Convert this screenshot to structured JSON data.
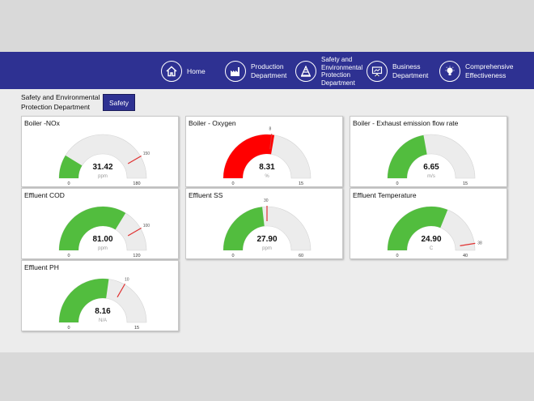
{
  "nav": {
    "items": [
      {
        "label": "Home",
        "icon": "home-icon"
      },
      {
        "label": "Production\nDepartment",
        "icon": "factory-icon"
      },
      {
        "label": "Safety and\nEnvironmental\nProtection\nDepartment",
        "icon": "safety-cone-icon"
      },
      {
        "label": "Business\nDepartment",
        "icon": "presentation-icon"
      },
      {
        "label": "Comprehensive\nEffectiveness",
        "icon": "lightbulb-icon"
      }
    ]
  },
  "header": {
    "department_label": "Safety and Environmental\nProtection Department",
    "safety_button": "Safety"
  },
  "colors": {
    "nav_bg": "#2e3192",
    "ok_fill": "#52bd3e",
    "alarm_fill": "#ff0000",
    "track": "#ececec",
    "threshold": "#e03030"
  },
  "gauges": [
    {
      "title": "Boiler -NOx",
      "value": 31.42,
      "value_text": "31.42",
      "unit": "ppm",
      "min": 0,
      "max": 180,
      "min_label": "0",
      "max_label": "180",
      "threshold": 150,
      "threshold_label": "150",
      "status": "ok"
    },
    {
      "title": "Boiler - Oxygen",
      "value": 8.31,
      "value_text": "8.31",
      "unit": "%",
      "min": 0,
      "max": 15,
      "min_label": "0",
      "max_label": "15",
      "threshold": 8,
      "threshold_label": "8",
      "status": "alarm"
    },
    {
      "title": "Boiler - Exhaust emission flow rate",
      "value": 6.65,
      "value_text": "6.65",
      "unit": "m/s",
      "min": 0,
      "max": 15,
      "min_label": "0",
      "max_label": "15",
      "threshold": null,
      "threshold_label": "",
      "status": "ok"
    },
    {
      "title": "Effluent COD",
      "value": 81.0,
      "value_text": "81.00",
      "unit": "ppm",
      "min": 0,
      "max": 120,
      "min_label": "0",
      "max_label": "120",
      "threshold": 100,
      "threshold_label": "100",
      "status": "ok"
    },
    {
      "title": "Effluent SS",
      "value": 27.9,
      "value_text": "27.90",
      "unit": "ppm",
      "min": 0,
      "max": 60,
      "min_label": "0",
      "max_label": "60",
      "threshold": 30,
      "threshold_label": "30",
      "status": "ok"
    },
    {
      "title": "Effluent Temperature",
      "value": 24.9,
      "value_text": "24.90",
      "unit": "C",
      "min": 0,
      "max": 40,
      "min_label": "0",
      "max_label": "40",
      "threshold": 38,
      "threshold_label": "38",
      "status": "ok"
    },
    {
      "title": "Effluent PH",
      "value": 8.16,
      "value_text": "8.16",
      "unit": "N/A",
      "min": 0,
      "max": 15,
      "min_label": "0",
      "max_label": "15",
      "threshold": 10,
      "threshold_label": "10",
      "status": "ok"
    }
  ]
}
